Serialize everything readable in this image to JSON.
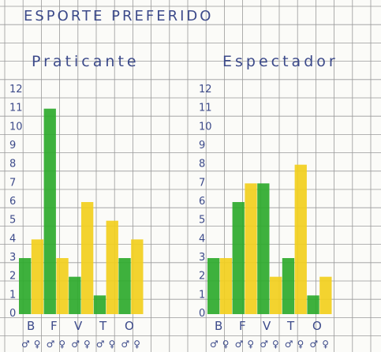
{
  "title": "ESPORTE PREFERIDO",
  "colors": {
    "grid": "#9a9a9a",
    "ink": "#3c4a8a",
    "green": "#2eaa2c",
    "yellow": "#f2cf1d",
    "paper": "#fbfbf8"
  },
  "chart_data": [
    {
      "type": "bar",
      "title": "Praticante",
      "categories": [
        "B",
        "F",
        "V",
        "T",
        "O"
      ],
      "series": [
        {
          "values": [
            3,
            11,
            2,
            1,
            3
          ]
        },
        {
          "values": [
            4,
            3,
            6,
            5,
            4
          ]
        }
      ],
      "sex_labels": [
        "♂",
        "♀",
        "♂",
        "♀",
        "♂",
        "♀",
        "♂",
        "♀",
        "♂",
        "♀"
      ],
      "yticks": [
        "0",
        "1",
        "2",
        "3",
        "4",
        "5",
        "6",
        "7",
        "8",
        "9",
        "10",
        "11",
        "12"
      ],
      "ylim": [
        0,
        12
      ],
      "grid": true
    },
    {
      "type": "bar",
      "title": "Espectador",
      "categories": [
        "B",
        "F",
        "V",
        "T",
        "O"
      ],
      "series": [
        {
          "values": [
            3,
            6,
            7,
            3,
            1
          ]
        },
        {
          "values": [
            3,
            7,
            2,
            8,
            2
          ]
        }
      ],
      "sex_labels": [
        "♂",
        "♀",
        "♂",
        "♀",
        "♂",
        "♀",
        "♂",
        "♀",
        "♂",
        "♀"
      ],
      "yticks": [
        "0",
        "1",
        "2",
        "3",
        "4",
        "5",
        "6",
        "7",
        "8",
        "9",
        "10",
        "11",
        "12"
      ],
      "ylim": [
        0,
        12
      ],
      "grid": true
    }
  ]
}
